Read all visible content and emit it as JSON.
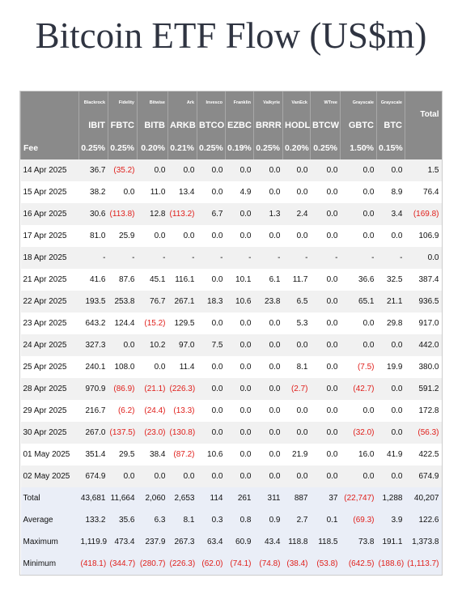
{
  "title": "Bitcoin ETF Flow (US$m)",
  "table": {
    "issuers": [
      "Blackrock",
      "Fidelity",
      "Bitwise",
      "Ark",
      "Invesco",
      "Franklin",
      "Valkyrie",
      "VanEck",
      "WTree",
      "Grayscale",
      "Grayscale",
      "Total"
    ],
    "tickers": [
      "IBIT",
      "FBTC",
      "BITB",
      "ARKB",
      "BTCO",
      "EZBC",
      "BRRR",
      "HODL",
      "BTCW",
      "GBTC",
      "BTC"
    ],
    "fee_label": "Fee",
    "fees": [
      "0.25%",
      "0.25%",
      "0.20%",
      "0.21%",
      "0.25%",
      "0.19%",
      "0.25%",
      "0.20%",
      "0.25%",
      "1.50%",
      "0.15%"
    ],
    "rows": [
      [
        "14 Apr 2025",
        "36.7",
        "(35.2)",
        "0.0",
        "0.0",
        "0.0",
        "0.0",
        "0.0",
        "0.0",
        "0.0",
        "0.0",
        "0.0",
        "1.5"
      ],
      [
        "15 Apr 2025",
        "38.2",
        "0.0",
        "11.0",
        "13.4",
        "0.0",
        "4.9",
        "0.0",
        "0.0",
        "0.0",
        "0.0",
        "8.9",
        "76.4"
      ],
      [
        "16 Apr 2025",
        "30.6",
        "(113.8)",
        "12.8",
        "(113.2)",
        "6.7",
        "0.0",
        "1.3",
        "2.4",
        "0.0",
        "0.0",
        "3.4",
        "(169.8)"
      ],
      [
        "17 Apr 2025",
        "81.0",
        "25.9",
        "0.0",
        "0.0",
        "0.0",
        "0.0",
        "0.0",
        "0.0",
        "0.0",
        "0.0",
        "0.0",
        "106.9"
      ],
      [
        "18 Apr 2025",
        "-",
        "-",
        "-",
        "-",
        "-",
        "-",
        "-",
        "-",
        "-",
        "-",
        "-",
        "0.0"
      ],
      [
        "21 Apr 2025",
        "41.6",
        "87.6",
        "45.1",
        "116.1",
        "0.0",
        "10.1",
        "6.1",
        "11.7",
        "0.0",
        "36.6",
        "32.5",
        "387.4"
      ],
      [
        "22 Apr 2025",
        "193.5",
        "253.8",
        "76.7",
        "267.1",
        "18.3",
        "10.6",
        "23.8",
        "6.5",
        "0.0",
        "65.1",
        "21.1",
        "936.5"
      ],
      [
        "23 Apr 2025",
        "643.2",
        "124.4",
        "(15.2)",
        "129.5",
        "0.0",
        "0.0",
        "0.0",
        "5.3",
        "0.0",
        "0.0",
        "29.8",
        "917.0"
      ],
      [
        "24 Apr 2025",
        "327.3",
        "0.0",
        "10.2",
        "97.0",
        "7.5",
        "0.0",
        "0.0",
        "0.0",
        "0.0",
        "0.0",
        "0.0",
        "442.0"
      ],
      [
        "25 Apr 2025",
        "240.1",
        "108.0",
        "0.0",
        "11.4",
        "0.0",
        "0.0",
        "0.0",
        "8.1",
        "0.0",
        "(7.5)",
        "19.9",
        "380.0"
      ],
      [
        "28 Apr 2025",
        "970.9",
        "(86.9)",
        "(21.1)",
        "(226.3)",
        "0.0",
        "0.0",
        "0.0",
        "(2.7)",
        "0.0",
        "(42.7)",
        "0.0",
        "591.2"
      ],
      [
        "29 Apr 2025",
        "216.7",
        "(6.2)",
        "(24.4)",
        "(13.3)",
        "0.0",
        "0.0",
        "0.0",
        "0.0",
        "0.0",
        "0.0",
        "0.0",
        "172.8"
      ],
      [
        "30 Apr 2025",
        "267.0",
        "(137.5)",
        "(23.0)",
        "(130.8)",
        "0.0",
        "0.0",
        "0.0",
        "0.0",
        "0.0",
        "(32.0)",
        "0.0",
        "(56.3)"
      ],
      [
        "01 May 2025",
        "351.4",
        "29.5",
        "38.4",
        "(87.2)",
        "10.6",
        "0.0",
        "0.0",
        "21.9",
        "0.0",
        "16.0",
        "41.9",
        "422.5"
      ],
      [
        "02 May 2025",
        "674.9",
        "0.0",
        "0.0",
        "0.0",
        "0.0",
        "0.0",
        "0.0",
        "0.0",
        "0.0",
        "0.0",
        "0.0",
        "674.9"
      ]
    ],
    "summary": [
      [
        "Total",
        "43,681",
        "11,664",
        "2,060",
        "2,653",
        "114",
        "261",
        "311",
        "887",
        "37",
        "(22,747)",
        "1,288",
        "40,207"
      ],
      [
        "Average",
        "133.2",
        "35.6",
        "6.3",
        "8.1",
        "0.3",
        "0.8",
        "0.9",
        "2.7",
        "0.1",
        "(69.3)",
        "3.9",
        "122.6"
      ],
      [
        "Maximum",
        "1,119.9",
        "473.4",
        "237.9",
        "267.3",
        "63.4",
        "60.9",
        "43.4",
        "118.8",
        "118.5",
        "73.8",
        "191.1",
        "1,373.8"
      ],
      [
        "Minimum",
        "(418.1)",
        "(344.7)",
        "(280.7)",
        "(226.3)",
        "(62.0)",
        "(74.1)",
        "(74.8)",
        "(38.4)",
        "(53.8)",
        "(642.5)",
        "(188.6)",
        "(1,113.7)"
      ]
    ]
  }
}
